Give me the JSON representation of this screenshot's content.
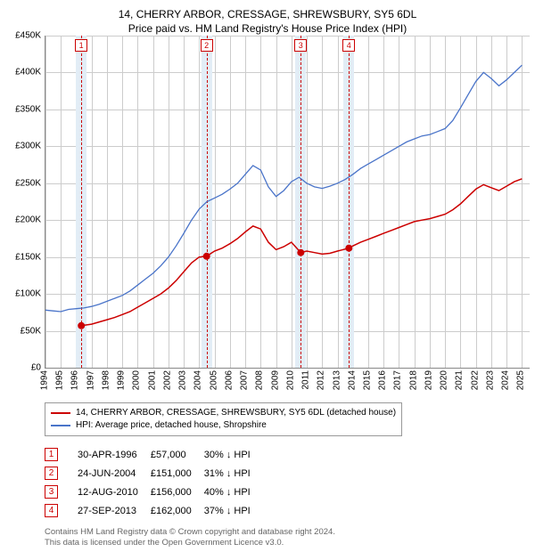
{
  "titles": {
    "line1": "14, CHERRY ARBOR, CRESSAGE, SHREWSBURY, SY5 6DL",
    "line2": "Price paid vs. HM Land Registry's House Price Index (HPI)"
  },
  "chart": {
    "type": "line",
    "background_color": "#ffffff",
    "grid_color": "#cccccc",
    "axis_color": "#888888",
    "xlim": [
      1994,
      2025.5
    ],
    "ylim": [
      0,
      450000
    ],
    "ytick_step": 50000,
    "yticks_labels": [
      "£0",
      "£50K",
      "£100K",
      "£150K",
      "£200K",
      "£250K",
      "£300K",
      "£350K",
      "£400K",
      "£450K"
    ],
    "xticks": [
      1994,
      1995,
      1996,
      1997,
      1998,
      1999,
      2000,
      2001,
      2002,
      2003,
      2004,
      2005,
      2006,
      2007,
      2008,
      2009,
      2010,
      2011,
      2012,
      2013,
      2014,
      2015,
      2016,
      2017,
      2018,
      2019,
      2020,
      2021,
      2022,
      2023,
      2024,
      2025
    ],
    "sale_band_color": "#e2edf6",
    "sale_line_color": "#cc0000",
    "sale_band_halfwidth_years": 0.35,
    "label_fontsize": 10,
    "title_fontsize": 12
  },
  "series": {
    "hpi": {
      "label": "HPI: Average price, detached house, Shropshire",
      "color": "#4a74c9",
      "width": 1.3,
      "points": [
        [
          1994.0,
          78000
        ],
        [
          1994.5,
          77000
        ],
        [
          1995.0,
          76000
        ],
        [
          1995.5,
          79000
        ],
        [
          1996.0,
          80000
        ],
        [
          1996.5,
          81000
        ],
        [
          1997.0,
          83000
        ],
        [
          1997.5,
          86000
        ],
        [
          1998.0,
          90000
        ],
        [
          1998.5,
          94000
        ],
        [
          1999.0,
          98000
        ],
        [
          1999.5,
          104000
        ],
        [
          2000.0,
          112000
        ],
        [
          2000.5,
          120000
        ],
        [
          2001.0,
          128000
        ],
        [
          2001.5,
          138000
        ],
        [
          2002.0,
          150000
        ],
        [
          2002.5,
          165000
        ],
        [
          2003.0,
          182000
        ],
        [
          2003.5,
          200000
        ],
        [
          2004.0,
          215000
        ],
        [
          2004.5,
          225000
        ],
        [
          2005.0,
          230000
        ],
        [
          2005.5,
          235000
        ],
        [
          2006.0,
          242000
        ],
        [
          2006.5,
          250000
        ],
        [
          2007.0,
          262000
        ],
        [
          2007.5,
          274000
        ],
        [
          2008.0,
          268000
        ],
        [
          2008.5,
          245000
        ],
        [
          2009.0,
          232000
        ],
        [
          2009.5,
          240000
        ],
        [
          2010.0,
          252000
        ],
        [
          2010.5,
          258000
        ],
        [
          2011.0,
          250000
        ],
        [
          2011.5,
          245000
        ],
        [
          2012.0,
          243000
        ],
        [
          2012.5,
          246000
        ],
        [
          2013.0,
          250000
        ],
        [
          2013.5,
          255000
        ],
        [
          2014.0,
          262000
        ],
        [
          2014.5,
          270000
        ],
        [
          2015.0,
          276000
        ],
        [
          2015.5,
          282000
        ],
        [
          2016.0,
          288000
        ],
        [
          2016.5,
          294000
        ],
        [
          2017.0,
          300000
        ],
        [
          2017.5,
          306000
        ],
        [
          2018.0,
          310000
        ],
        [
          2018.5,
          314000
        ],
        [
          2019.0,
          316000
        ],
        [
          2019.5,
          320000
        ],
        [
          2020.0,
          324000
        ],
        [
          2020.5,
          335000
        ],
        [
          2021.0,
          352000
        ],
        [
          2021.5,
          370000
        ],
        [
          2022.0,
          388000
        ],
        [
          2022.5,
          400000
        ],
        [
          2023.0,
          392000
        ],
        [
          2023.5,
          382000
        ],
        [
          2024.0,
          390000
        ],
        [
          2024.5,
          400000
        ],
        [
          2025.0,
          410000
        ]
      ]
    },
    "property": {
      "label": "14, CHERRY ARBOR, CRESSAGE, SHREWSBURY, SY5 6DL (detached house)",
      "color": "#cc0000",
      "width": 1.5,
      "dot_radius": 4,
      "points": [
        [
          1996.33,
          57000
        ],
        [
          1997.0,
          59000
        ],
        [
          1997.5,
          62000
        ],
        [
          1998.0,
          65000
        ],
        [
          1998.5,
          68000
        ],
        [
          1999.0,
          72000
        ],
        [
          1999.5,
          76000
        ],
        [
          2000.0,
          82000
        ],
        [
          2000.5,
          88000
        ],
        [
          2001.0,
          94000
        ],
        [
          2001.5,
          100000
        ],
        [
          2002.0,
          108000
        ],
        [
          2002.5,
          118000
        ],
        [
          2003.0,
          130000
        ],
        [
          2003.5,
          142000
        ],
        [
          2004.0,
          150000
        ],
        [
          2004.48,
          151000
        ],
        [
          2005.0,
          158000
        ],
        [
          2005.5,
          162000
        ],
        [
          2006.0,
          168000
        ],
        [
          2006.5,
          175000
        ],
        [
          2007.0,
          184000
        ],
        [
          2007.5,
          192000
        ],
        [
          2008.0,
          188000
        ],
        [
          2008.5,
          170000
        ],
        [
          2009.0,
          160000
        ],
        [
          2009.5,
          164000
        ],
        [
          2010.0,
          170000
        ],
        [
          2010.61,
          156000
        ],
        [
          2011.0,
          158000
        ],
        [
          2011.5,
          156000
        ],
        [
          2012.0,
          154000
        ],
        [
          2012.5,
          155000
        ],
        [
          2013.0,
          158000
        ],
        [
          2013.74,
          162000
        ],
        [
          2014.0,
          165000
        ],
        [
          2014.5,
          170000
        ],
        [
          2015.0,
          174000
        ],
        [
          2015.5,
          178000
        ],
        [
          2016.0,
          182000
        ],
        [
          2016.5,
          186000
        ],
        [
          2017.0,
          190000
        ],
        [
          2017.5,
          194000
        ],
        [
          2018.0,
          198000
        ],
        [
          2018.5,
          200000
        ],
        [
          2019.0,
          202000
        ],
        [
          2019.5,
          205000
        ],
        [
          2020.0,
          208000
        ],
        [
          2020.5,
          214000
        ],
        [
          2021.0,
          222000
        ],
        [
          2021.5,
          232000
        ],
        [
          2022.0,
          242000
        ],
        [
          2022.5,
          248000
        ],
        [
          2023.0,
          244000
        ],
        [
          2023.5,
          240000
        ],
        [
          2024.0,
          246000
        ],
        [
          2024.5,
          252000
        ],
        [
          2025.0,
          256000
        ]
      ]
    }
  },
  "sales": [
    {
      "n": "1",
      "x": 1996.33,
      "date": "30-APR-1996",
      "price": "£57,000",
      "diff": "30% ↓ HPI"
    },
    {
      "n": "2",
      "x": 2004.48,
      "date": "24-JUN-2004",
      "price": "£151,000",
      "diff": "31% ↓ HPI"
    },
    {
      "n": "3",
      "x": 2010.61,
      "date": "12-AUG-2010",
      "price": "£156,000",
      "diff": "40% ↓ HPI"
    },
    {
      "n": "4",
      "x": 2013.74,
      "date": "27-SEP-2013",
      "price": "£162,000",
      "diff": "37% ↓ HPI"
    }
  ],
  "footer": {
    "line1": "Contains HM Land Registry data © Crown copyright and database right 2024.",
    "line2": "This data is licensed under the Open Government Licence v3.0."
  }
}
